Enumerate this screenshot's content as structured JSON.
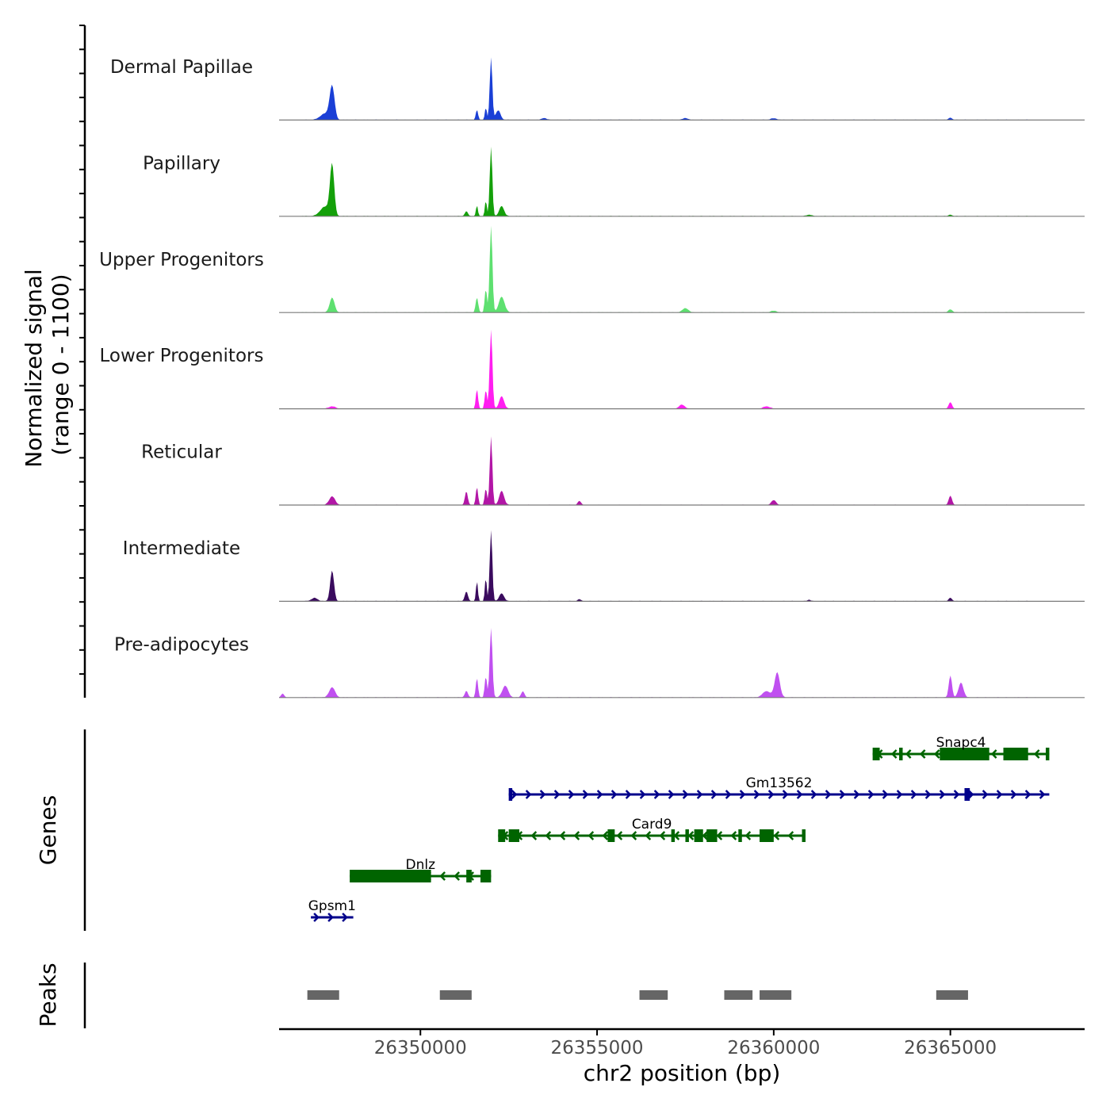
{
  "chart_data": {
    "type": "area",
    "title": "",
    "chromosome": "chr2",
    "xlabel": "chr2 position (bp)",
    "ylabel_line1": "Normalized signal",
    "ylabel_line2": "(range 0 - 1100)",
    "yrange": [
      0,
      1100
    ],
    "xlim": [
      26346000,
      26368800
    ],
    "xticks": [
      26350000,
      26355000,
      26360000,
      26365000
    ],
    "xtick_labels": [
      "26350000",
      "26355000",
      "26360000",
      "26365000"
    ],
    "series": [
      {
        "name": "Dermal Papillae",
        "color": "#1a3fd6",
        "peaks": [
          {
            "x": 26347500,
            "h": 420,
            "w": 150
          },
          {
            "x": 26347300,
            "h": 80,
            "w": 300
          },
          {
            "x": 26351600,
            "h": 130,
            "w": 70
          },
          {
            "x": 26351850,
            "h": 160,
            "w": 60
          },
          {
            "x": 26352000,
            "h": 790,
            "w": 80
          },
          {
            "x": 26352200,
            "h": 120,
            "w": 150
          },
          {
            "x": 26353500,
            "h": 25,
            "w": 150
          },
          {
            "x": 26357500,
            "h": 25,
            "w": 150
          },
          {
            "x": 26360000,
            "h": 20,
            "w": 200
          },
          {
            "x": 26365000,
            "h": 30,
            "w": 100
          }
        ]
      },
      {
        "name": "Papillary",
        "color": "#14a00a",
        "peaks": [
          {
            "x": 26347500,
            "h": 640,
            "w": 130
          },
          {
            "x": 26347300,
            "h": 120,
            "w": 300
          },
          {
            "x": 26351300,
            "h": 60,
            "w": 100
          },
          {
            "x": 26351600,
            "h": 140,
            "w": 60
          },
          {
            "x": 26351850,
            "h": 200,
            "w": 60
          },
          {
            "x": 26352000,
            "h": 880,
            "w": 80
          },
          {
            "x": 26352300,
            "h": 130,
            "w": 150
          },
          {
            "x": 26361000,
            "h": 20,
            "w": 150
          },
          {
            "x": 26365000,
            "h": 20,
            "w": 100
          }
        ]
      },
      {
        "name": "Upper Progenitors",
        "color": "#5ee070",
        "peaks": [
          {
            "x": 26347500,
            "h": 190,
            "w": 150
          },
          {
            "x": 26351600,
            "h": 190,
            "w": 80
          },
          {
            "x": 26351850,
            "h": 300,
            "w": 70
          },
          {
            "x": 26352000,
            "h": 1100,
            "w": 85
          },
          {
            "x": 26352300,
            "h": 200,
            "w": 180
          },
          {
            "x": 26357500,
            "h": 55,
            "w": 180
          },
          {
            "x": 26360000,
            "h": 20,
            "w": 200
          },
          {
            "x": 26365000,
            "h": 40,
            "w": 120
          }
        ]
      },
      {
        "name": "Lower Progenitors",
        "color": "#ff1ef0",
        "peaks": [
          {
            "x": 26347500,
            "h": 30,
            "w": 200
          },
          {
            "x": 26351600,
            "h": 250,
            "w": 70
          },
          {
            "x": 26351850,
            "h": 240,
            "w": 70
          },
          {
            "x": 26352000,
            "h": 1000,
            "w": 85
          },
          {
            "x": 26352300,
            "h": 160,
            "w": 150
          },
          {
            "x": 26357400,
            "h": 50,
            "w": 180
          },
          {
            "x": 26359800,
            "h": 30,
            "w": 200
          },
          {
            "x": 26365000,
            "h": 85,
            "w": 100
          }
        ]
      },
      {
        "name": "Reticular",
        "color": "#b216a6",
        "peaks": [
          {
            "x": 26347500,
            "h": 110,
            "w": 180
          },
          {
            "x": 26351300,
            "h": 170,
            "w": 90
          },
          {
            "x": 26351600,
            "h": 230,
            "w": 70
          },
          {
            "x": 26351850,
            "h": 210,
            "w": 70
          },
          {
            "x": 26352000,
            "h": 870,
            "w": 80
          },
          {
            "x": 26352300,
            "h": 180,
            "w": 150
          },
          {
            "x": 26354500,
            "h": 50,
            "w": 100
          },
          {
            "x": 26360000,
            "h": 60,
            "w": 150
          },
          {
            "x": 26365000,
            "h": 120,
            "w": 100
          }
        ]
      },
      {
        "name": "Intermediate",
        "color": "#3a0b5e",
        "peaks": [
          {
            "x": 26347500,
            "h": 390,
            "w": 120
          },
          {
            "x": 26347000,
            "h": 40,
            "w": 200
          },
          {
            "x": 26351300,
            "h": 120,
            "w": 100
          },
          {
            "x": 26351600,
            "h": 260,
            "w": 60
          },
          {
            "x": 26351850,
            "h": 300,
            "w": 60
          },
          {
            "x": 26352000,
            "h": 900,
            "w": 80
          },
          {
            "x": 26352300,
            "h": 100,
            "w": 150
          },
          {
            "x": 26354500,
            "h": 25,
            "w": 100
          },
          {
            "x": 26361000,
            "h": 20,
            "w": 100
          },
          {
            "x": 26365000,
            "h": 45,
            "w": 100
          }
        ]
      },
      {
        "name": "Pre-adipocytes",
        "color": "#c050f0",
        "peaks": [
          {
            "x": 26347500,
            "h": 130,
            "w": 180
          },
          {
            "x": 26346100,
            "h": 50,
            "w": 100
          },
          {
            "x": 26351300,
            "h": 80,
            "w": 100
          },
          {
            "x": 26351600,
            "h": 250,
            "w": 70
          },
          {
            "x": 26351850,
            "h": 270,
            "w": 70
          },
          {
            "x": 26352000,
            "h": 880,
            "w": 85
          },
          {
            "x": 26352400,
            "h": 150,
            "w": 180
          },
          {
            "x": 26352900,
            "h": 80,
            "w": 100
          },
          {
            "x": 26360100,
            "h": 320,
            "w": 160
          },
          {
            "x": 26359800,
            "h": 80,
            "w": 250
          },
          {
            "x": 26365000,
            "h": 280,
            "w": 100
          },
          {
            "x": 26365300,
            "h": 190,
            "w": 150
          }
        ]
      }
    ],
    "genes": [
      {
        "name": "Snapc4",
        "strand": "-",
        "start": 26362800,
        "end": 26367800,
        "row": 0,
        "color": "#006400",
        "exons": [
          [
            26362800,
            26363000
          ],
          [
            26363550,
            26363650
          ],
          [
            26364700,
            26366100
          ],
          [
            26366500,
            26367200
          ],
          [
            26367700,
            26367800
          ]
        ]
      },
      {
        "name": "Gm13562",
        "strand": "+",
        "start": 26352500,
        "end": 26367800,
        "row": 1,
        "color": "#00008b",
        "exons": [
          [
            26352500,
            26352600
          ],
          [
            26365400,
            26365550
          ]
        ]
      },
      {
        "name": "Card9",
        "strand": "-",
        "start": 26352200,
        "end": 26360900,
        "row": 2,
        "color": "#006400",
        "exons": [
          [
            26352200,
            26352400
          ],
          [
            26352500,
            26352800
          ],
          [
            26355300,
            26355500
          ],
          [
            26357100,
            26357200
          ],
          [
            26357500,
            26357600
          ],
          [
            26357750,
            26358000
          ],
          [
            26358100,
            26358400
          ],
          [
            26359000,
            26359100
          ],
          [
            26359600,
            26360000
          ],
          [
            26360800,
            26360900
          ]
        ]
      },
      {
        "name": "Dnlz",
        "strand": "-",
        "start": 26348000,
        "end": 26352000,
        "row": 3,
        "color": "#006400",
        "exons": [
          [
            26348000,
            26350300
          ],
          [
            26351300,
            26351450
          ],
          [
            26351700,
            26352000
          ]
        ]
      },
      {
        "name": "Gpsm1",
        "strand": "+",
        "start": 26346900,
        "end": 26348100,
        "row": 4,
        "color": "#00008b",
        "exons": []
      }
    ],
    "peaks_track": [
      [
        26346800,
        26347700
      ],
      [
        26350550,
        26351450
      ],
      [
        26356200,
        26357000
      ],
      [
        26358600,
        26359400
      ],
      [
        26359600,
        26360500
      ],
      [
        26364600,
        26365500
      ]
    ],
    "peaks_color": "#666666"
  },
  "panels": {
    "genes_label": "Genes",
    "peaks_label": "Peaks"
  }
}
